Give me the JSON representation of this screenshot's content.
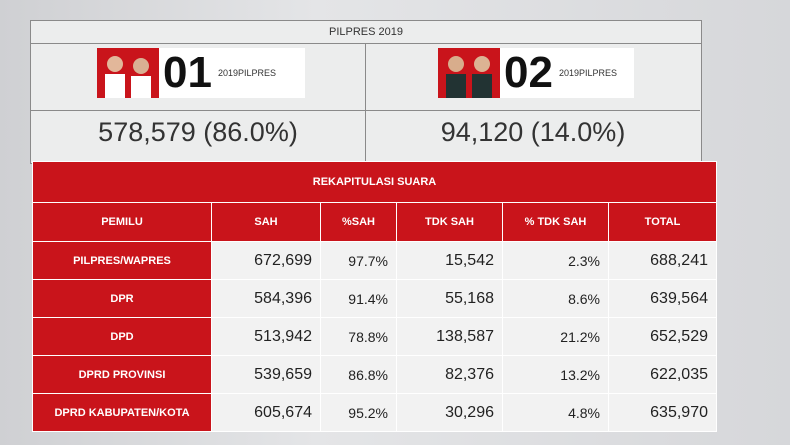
{
  "header": {
    "title": "PILPRES 2019"
  },
  "candidates": [
    {
      "number": "01",
      "logo": "2019PILPRES",
      "result": "578,579 (86.0%)"
    },
    {
      "number": "02",
      "logo": "2019PILPRES",
      "result": "94,120 (14.0%)"
    }
  ],
  "table": {
    "title": "REKAPITULASI SUARA",
    "columns": [
      "PEMILU",
      "SAH",
      "%SAH",
      "TDK SAH",
      "% TDK SAH",
      "TOTAL"
    ],
    "rows": [
      [
        "PILPRES/WAPRES",
        "672,699",
        "97.7%",
        "15,542",
        "2.3%",
        "688,241"
      ],
      [
        "DPR",
        "584,396",
        "91.4%",
        "55,168",
        "8.6%",
        "639,564"
      ],
      [
        "DPD",
        "513,942",
        "78.8%",
        "138,587",
        "21.2%",
        "652,529"
      ],
      [
        "DPRD PROVINSI",
        "539,659",
        "86.8%",
        "82,376",
        "13.2%",
        "622,035"
      ],
      [
        "DPRD KABUPATEN/KOTA",
        "605,674",
        "95.2%",
        "30,296",
        "4.8%",
        "635,970"
      ]
    ]
  }
}
